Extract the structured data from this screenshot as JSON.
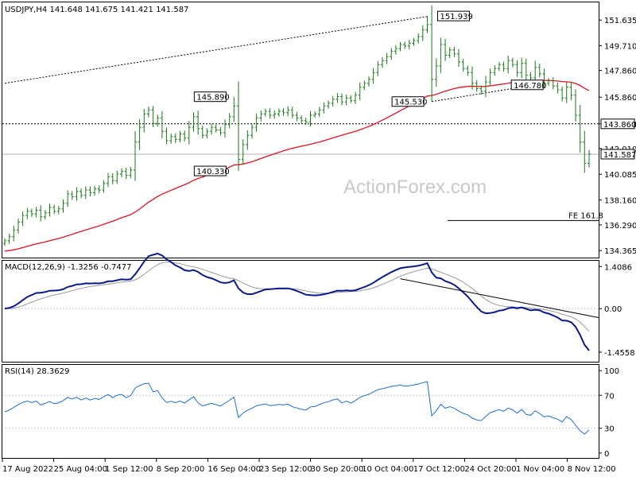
{
  "chart_data": {
    "type": "candlestick",
    "main_panel": {
      "symbol_info": "USDJPY,H4  141.648 141.675 141.421 141.587",
      "y_ticks": [
        "151.635",
        "149.710",
        "147.860",
        "145.860",
        "143.860",
        "142.010",
        "140.085",
        "138.160",
        "136.290",
        "134.365"
      ],
      "y_tick_values": [
        151.635,
        149.71,
        147.86,
        145.86,
        143.86,
        142.01,
        140.085,
        138.16,
        136.29,
        134.365
      ],
      "ylim": [
        133.9,
        152.9
      ],
      "price_labels": [
        {
          "text": "151.939",
          "value": 151.939,
          "dx": 13,
          "x_index": 94
        },
        {
          "text": "145.890",
          "value": 145.89,
          "dx": -50,
          "x_index": 51
        },
        {
          "text": "140.330",
          "value": 140.33,
          "dx": -50,
          "x_index": 51
        },
        {
          "text": "145.530",
          "value": 145.53,
          "dx": -50,
          "x_index": 95
        },
        {
          "text": "146.780",
          "value": 146.78,
          "dx": -30,
          "x_index": 118
        }
      ],
      "horizontal_levels": [
        {
          "label": "143.860",
          "value": 143.86,
          "style": "dashed",
          "color": "#000000"
        },
        {
          "label": "141.587",
          "value": 141.587,
          "style": "solid",
          "color": "#b0b0b0"
        }
      ],
      "fe_label": "FE 161.8",
      "fe_value": 136.62,
      "trendline_upper": [
        [
          0,
          146.9
        ],
        [
          94,
          151.9
        ]
      ],
      "trendline_lower": [
        [
          95,
          145.53
        ],
        [
          118,
          146.78
        ]
      ],
      "moving_average_color": "#e0141e",
      "watermark": "ActionForex.com"
    },
    "macd_panel": {
      "label": "MACD(12,26,9) -1.3256 -0.7477",
      "y_ticks": [
        "1.4086",
        "0.00",
        "-1.4558"
      ],
      "y_tick_values": [
        1.4086,
        0.0,
        -1.4558
      ],
      "ylim": [
        -1.75,
        1.55
      ],
      "trendline": [
        [
          88,
          1.0
        ],
        [
          128,
          -0.3
        ]
      ]
    },
    "rsi_panel": {
      "label": "RSI(14) 28.3629",
      "y_ticks": [
        "100",
        "70",
        "30",
        "0"
      ],
      "y_tick_values": [
        100,
        70,
        30,
        0
      ],
      "ylim": [
        -5,
        105
      ],
      "levels": [
        70,
        30
      ]
    },
    "x_tick_labels": [
      "17 Aug 2022",
      "25 Aug 04:00",
      "1 Sep 12:00",
      "8 Sep 20:00",
      "16 Sep 04:00",
      "23 Sep 12:00",
      "30 Sep 20:00",
      "10 Oct 04:00",
      "17 Oct 12:00",
      "24 Oct 20:00",
      "1 Nov 04:00",
      "8 Nov 12:00"
    ],
    "closes": [
      135.1,
      135.4,
      135.9,
      136.5,
      137.0,
      137.3,
      137.1,
      137.4,
      136.9,
      137.2,
      137.6,
      137.3,
      137.5,
      137.9,
      138.6,
      138.4,
      138.8,
      138.5,
      138.9,
      138.7,
      139.0,
      138.9,
      139.4,
      139.9,
      139.6,
      140.1,
      140.3,
      140.0,
      140.4,
      142.5,
      143.6,
      144.6,
      144.9,
      143.9,
      144.3,
      143.3,
      142.6,
      142.9,
      142.7,
      143.1,
      142.8,
      143.6,
      144.4,
      143.5,
      143.0,
      143.3,
      143.6,
      143.4,
      143.2,
      143.8,
      144.4,
      145.2,
      141.2,
      142.3,
      143.0,
      143.6,
      144.3,
      144.6,
      144.8,
      144.5,
      144.6,
      144.8,
      144.7,
      144.9,
      144.5,
      144.3,
      144.1,
      144.0,
      144.5,
      144.6,
      144.9,
      145.2,
      145.4,
      145.7,
      145.9,
      145.5,
      145.8,
      145.6,
      146.0,
      146.6,
      146.9,
      147.2,
      147.7,
      148.3,
      148.6,
      148.9,
      149.3,
      149.5,
      149.8,
      149.7,
      149.9,
      150.1,
      150.4,
      150.9,
      151.3,
      147.2,
      148.2,
      149.8,
      149.0,
      149.4,
      149.1,
      148.5,
      148.0,
      147.7,
      146.9,
      146.5,
      146.3,
      147.0,
      147.7,
      148.0,
      148.3,
      148.0,
      148.6,
      148.3,
      147.7,
      148.4,
      147.5,
      147.3,
      148.1,
      147.6,
      146.9,
      147.1,
      146.7,
      146.4,
      145.8,
      146.6,
      146.0,
      144.5,
      142.5,
      140.9,
      141.6
    ]
  }
}
